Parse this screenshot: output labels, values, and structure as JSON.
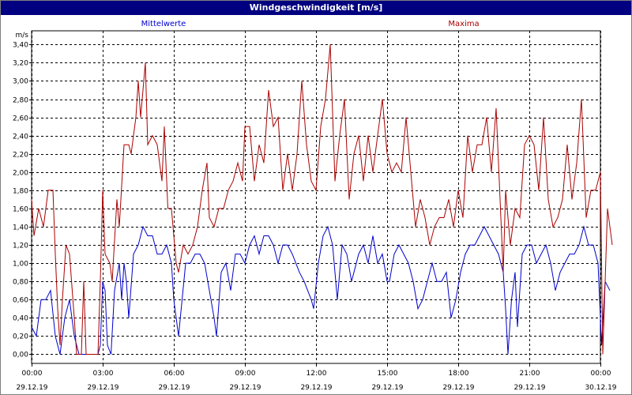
{
  "window": {
    "title": "Windgeschwindigkeit [m/s]"
  },
  "chart_data": {
    "type": "line",
    "title": "Windgeschwindigkeit [m/s]",
    "ylabel": "m/s",
    "ylim": [
      -0.1,
      3.55
    ],
    "yticks": [
      "0,00",
      "0,20",
      "0,40",
      "0,60",
      "0,80",
      "1,00",
      "1,20",
      "1,40",
      "1,60",
      "1,80",
      "2,00",
      "2,20",
      "2,40",
      "2,60",
      "2,80",
      "3,00",
      "3,20",
      "3,40"
    ],
    "xlim_hours": [
      0,
      24
    ],
    "xticks": [
      {
        "time": "00:00",
        "date": "29.12.19"
      },
      {
        "time": "03:00",
        "date": "29.12.19"
      },
      {
        "time": "06:00",
        "date": "29.12.19"
      },
      {
        "time": "09:00",
        "date": "29.12.19"
      },
      {
        "time": "12:00",
        "date": "29.12.19"
      },
      {
        "time": "15:00",
        "date": "29.12.19"
      },
      {
        "time": "18:00",
        "date": "29.12.19"
      },
      {
        "time": "21:00",
        "date": "29.12.19"
      },
      {
        "time": "00:00",
        "date": "30.12.19"
      }
    ],
    "grid": true,
    "legend_position": "top",
    "series": [
      {
        "name": "Mittelwerte",
        "color": "#0000cc",
        "points": [
          [
            0,
            0.3
          ],
          [
            0.2,
            0.2
          ],
          [
            0.4,
            0.6
          ],
          [
            0.6,
            0.6
          ],
          [
            0.8,
            0.7
          ],
          [
            1.0,
            0.2
          ],
          [
            1.2,
            0
          ],
          [
            1.4,
            0.4
          ],
          [
            1.6,
            0.6
          ],
          [
            1.8,
            0.2
          ],
          [
            2.0,
            0
          ],
          [
            2.2,
            0
          ],
          [
            2.4,
            0
          ],
          [
            2.6,
            0
          ],
          [
            2.8,
            0
          ],
          [
            2.9,
            0.1
          ],
          [
            3.0,
            0.8
          ],
          [
            3.1,
            0.7
          ],
          [
            3.2,
            0.1
          ],
          [
            3.35,
            0
          ],
          [
            3.5,
            0.7
          ],
          [
            3.7,
            1.0
          ],
          [
            3.8,
            0.6
          ],
          [
            3.9,
            1.0
          ],
          [
            4.0,
            0.8
          ],
          [
            4.1,
            0.4
          ],
          [
            4.3,
            1.1
          ],
          [
            4.5,
            1.2
          ],
          [
            4.7,
            1.4
          ],
          [
            4.9,
            1.3
          ],
          [
            5.1,
            1.3
          ],
          [
            5.3,
            1.1
          ],
          [
            5.5,
            1.1
          ],
          [
            5.7,
            1.2
          ],
          [
            5.9,
            1.0
          ],
          [
            6.0,
            0.6
          ],
          [
            6.1,
            0.4
          ],
          [
            6.2,
            0.2
          ],
          [
            6.35,
            0.6
          ],
          [
            6.5,
            1.0
          ],
          [
            6.7,
            1.0
          ],
          [
            6.9,
            1.1
          ],
          [
            7.1,
            1.1
          ],
          [
            7.3,
            1.0
          ],
          [
            7.5,
            0.7
          ],
          [
            7.7,
            0.4
          ],
          [
            7.8,
            0.2
          ],
          [
            8.0,
            0.9
          ],
          [
            8.2,
            1.0
          ],
          [
            8.4,
            0.7
          ],
          [
            8.6,
            1.1
          ],
          [
            8.8,
            1.1
          ],
          [
            9.0,
            1.0
          ],
          [
            9.2,
            1.2
          ],
          [
            9.4,
            1.3
          ],
          [
            9.6,
            1.1
          ],
          [
            9.8,
            1.3
          ],
          [
            10.0,
            1.3
          ],
          [
            10.2,
            1.2
          ],
          [
            10.4,
            1.0
          ],
          [
            10.6,
            1.2
          ],
          [
            10.8,
            1.2
          ],
          [
            11.0,
            1.1
          ],
          [
            11.3,
            0.9
          ],
          [
            11.5,
            0.8
          ],
          [
            11.8,
            0.6
          ],
          [
            11.9,
            0.5
          ],
          [
            12.1,
            1.0
          ],
          [
            12.3,
            1.3
          ],
          [
            12.5,
            1.4
          ],
          [
            12.7,
            1.2
          ],
          [
            12.9,
            0.6
          ],
          [
            13.1,
            1.2
          ],
          [
            13.3,
            1.1
          ],
          [
            13.5,
            0.8
          ],
          [
            13.8,
            1.1
          ],
          [
            14.0,
            1.2
          ],
          [
            14.2,
            1.0
          ],
          [
            14.4,
            1.3
          ],
          [
            14.6,
            1.0
          ],
          [
            14.8,
            1.1
          ],
          [
            15.0,
            0.8
          ],
          [
            15.1,
            0.8
          ],
          [
            15.3,
            1.1
          ],
          [
            15.5,
            1.2
          ],
          [
            15.7,
            1.1
          ],
          [
            15.9,
            1.0
          ],
          [
            16.1,
            0.8
          ],
          [
            16.3,
            0.5
          ],
          [
            16.5,
            0.6
          ],
          [
            16.7,
            0.8
          ],
          [
            16.9,
            1.0
          ],
          [
            17.1,
            0.8
          ],
          [
            17.3,
            0.8
          ],
          [
            17.5,
            0.9
          ],
          [
            17.7,
            0.4
          ],
          [
            17.9,
            0.6
          ],
          [
            18.1,
            0.9
          ],
          [
            18.3,
            1.1
          ],
          [
            18.5,
            1.2
          ],
          [
            18.7,
            1.2
          ],
          [
            18.9,
            1.3
          ],
          [
            19.1,
            1.4
          ],
          [
            19.3,
            1.3
          ],
          [
            19.5,
            1.2
          ],
          [
            19.7,
            1.1
          ],
          [
            19.9,
            0.9
          ],
          [
            20.0,
            0.5
          ],
          [
            20.1,
            0
          ],
          [
            20.25,
            0.6
          ],
          [
            20.4,
            0.9
          ],
          [
            20.5,
            0.3
          ],
          [
            20.7,
            1.1
          ],
          [
            20.9,
            1.2
          ],
          [
            21.1,
            1.2
          ],
          [
            21.3,
            1.0
          ],
          [
            21.5,
            1.1
          ],
          [
            21.7,
            1.2
          ],
          [
            21.9,
            1.0
          ],
          [
            22.1,
            0.7
          ],
          [
            22.3,
            0.9
          ],
          [
            22.5,
            1.0
          ],
          [
            22.7,
            1.1
          ],
          [
            22.9,
            1.1
          ],
          [
            23.1,
            1.2
          ],
          [
            23.3,
            1.4
          ],
          [
            23.5,
            1.2
          ],
          [
            23.7,
            1.2
          ],
          [
            23.9,
            1.0
          ],
          [
            24.05,
            0.1
          ],
          [
            24.2,
            0.8
          ],
          [
            24.4,
            0.7
          ]
        ]
      },
      {
        "name": "Maxima",
        "color": "#aa0000",
        "points": [
          [
            0,
            1.7
          ],
          [
            0.1,
            1.3
          ],
          [
            0.3,
            1.6
          ],
          [
            0.5,
            1.4
          ],
          [
            0.7,
            1.8
          ],
          [
            0.9,
            1.8
          ],
          [
            1.0,
            1.1
          ],
          [
            1.1,
            0.5
          ],
          [
            1.2,
            0.1
          ],
          [
            1.3,
            0.6
          ],
          [
            1.45,
            1.2
          ],
          [
            1.6,
            1.1
          ],
          [
            1.8,
            0.4
          ],
          [
            1.9,
            0
          ],
          [
            2.1,
            0
          ],
          [
            2.2,
            0.8
          ],
          [
            2.3,
            0
          ],
          [
            2.5,
            0
          ],
          [
            2.7,
            0
          ],
          [
            2.8,
            0
          ],
          [
            2.9,
            0.8
          ],
          [
            3.0,
            1.8
          ],
          [
            3.1,
            1.1
          ],
          [
            3.3,
            1.0
          ],
          [
            3.4,
            0.8
          ],
          [
            3.6,
            1.7
          ],
          [
            3.7,
            1.4
          ],
          [
            3.9,
            2.3
          ],
          [
            4.1,
            2.3
          ],
          [
            4.2,
            2.2
          ],
          [
            4.4,
            2.6
          ],
          [
            4.5,
            3.0
          ],
          [
            4.6,
            2.6
          ],
          [
            4.8,
            3.2
          ],
          [
            4.9,
            2.3
          ],
          [
            5.1,
            2.4
          ],
          [
            5.3,
            2.3
          ],
          [
            5.5,
            1.9
          ],
          [
            5.6,
            2.5
          ],
          [
            5.75,
            1.6
          ],
          [
            5.9,
            1.6
          ],
          [
            6.0,
            1.3
          ],
          [
            6.1,
            1.0
          ],
          [
            6.2,
            0.9
          ],
          [
            6.4,
            1.2
          ],
          [
            6.6,
            1.1
          ],
          [
            6.8,
            1.2
          ],
          [
            7.0,
            1.4
          ],
          [
            7.2,
            1.8
          ],
          [
            7.4,
            2.1
          ],
          [
            7.5,
            1.5
          ],
          [
            7.7,
            1.4
          ],
          [
            7.9,
            1.6
          ],
          [
            8.1,
            1.6
          ],
          [
            8.3,
            1.8
          ],
          [
            8.5,
            1.9
          ],
          [
            8.7,
            2.1
          ],
          [
            8.9,
            1.9
          ],
          [
            9.0,
            2.5
          ],
          [
            9.2,
            2.5
          ],
          [
            9.4,
            1.9
          ],
          [
            9.6,
            2.3
          ],
          [
            9.8,
            2.1
          ],
          [
            10.0,
            2.9
          ],
          [
            10.2,
            2.5
          ],
          [
            10.4,
            2.6
          ],
          [
            10.6,
            1.8
          ],
          [
            10.8,
            2.2
          ],
          [
            11.0,
            1.8
          ],
          [
            11.2,
            2.2
          ],
          [
            11.4,
            3.0
          ],
          [
            11.6,
            2.3
          ],
          [
            11.8,
            1.9
          ],
          [
            12.0,
            1.8
          ],
          [
            12.2,
            2.5
          ],
          [
            12.4,
            2.8
          ],
          [
            12.6,
            3.4
          ],
          [
            12.8,
            1.9
          ],
          [
            13.0,
            2.4
          ],
          [
            13.2,
            2.8
          ],
          [
            13.4,
            1.7
          ],
          [
            13.6,
            2.2
          ],
          [
            13.8,
            2.4
          ],
          [
            14.0,
            1.9
          ],
          [
            14.2,
            2.4
          ],
          [
            14.4,
            2.0
          ],
          [
            14.6,
            2.4
          ],
          [
            14.8,
            2.8
          ],
          [
            15.0,
            2.2
          ],
          [
            15.2,
            2.0
          ],
          [
            15.4,
            2.1
          ],
          [
            15.6,
            2.0
          ],
          [
            15.8,
            2.6
          ],
          [
            16.0,
            2.0
          ],
          [
            16.2,
            1.4
          ],
          [
            16.4,
            1.7
          ],
          [
            16.6,
            1.5
          ],
          [
            16.8,
            1.2
          ],
          [
            17.0,
            1.4
          ],
          [
            17.2,
            1.5
          ],
          [
            17.4,
            1.5
          ],
          [
            17.6,
            1.7
          ],
          [
            17.8,
            1.4
          ],
          [
            18.0,
            1.8
          ],
          [
            18.2,
            1.5
          ],
          [
            18.4,
            2.4
          ],
          [
            18.6,
            2.0
          ],
          [
            18.8,
            2.3
          ],
          [
            19.0,
            2.3
          ],
          [
            19.2,
            2.6
          ],
          [
            19.4,
            2.0
          ],
          [
            19.6,
            2.7
          ],
          [
            19.8,
            1.5
          ],
          [
            19.9,
            0.9
          ],
          [
            20.0,
            1.8
          ],
          [
            20.2,
            1.2
          ],
          [
            20.4,
            1.6
          ],
          [
            20.6,
            1.5
          ],
          [
            20.8,
            2.3
          ],
          [
            21.0,
            2.4
          ],
          [
            21.2,
            2.3
          ],
          [
            21.4,
            1.8
          ],
          [
            21.6,
            2.6
          ],
          [
            21.8,
            1.7
          ],
          [
            22.0,
            1.4
          ],
          [
            22.2,
            1.5
          ],
          [
            22.4,
            1.7
          ],
          [
            22.6,
            2.3
          ],
          [
            22.8,
            1.7
          ],
          [
            23.0,
            2.1
          ],
          [
            23.2,
            2.8
          ],
          [
            23.4,
            1.5
          ],
          [
            23.6,
            1.8
          ],
          [
            23.8,
            1.8
          ],
          [
            24.0,
            2.0
          ],
          [
            24.1,
            0
          ],
          [
            24.3,
            1.6
          ],
          [
            24.5,
            1.2
          ]
        ]
      }
    ]
  }
}
